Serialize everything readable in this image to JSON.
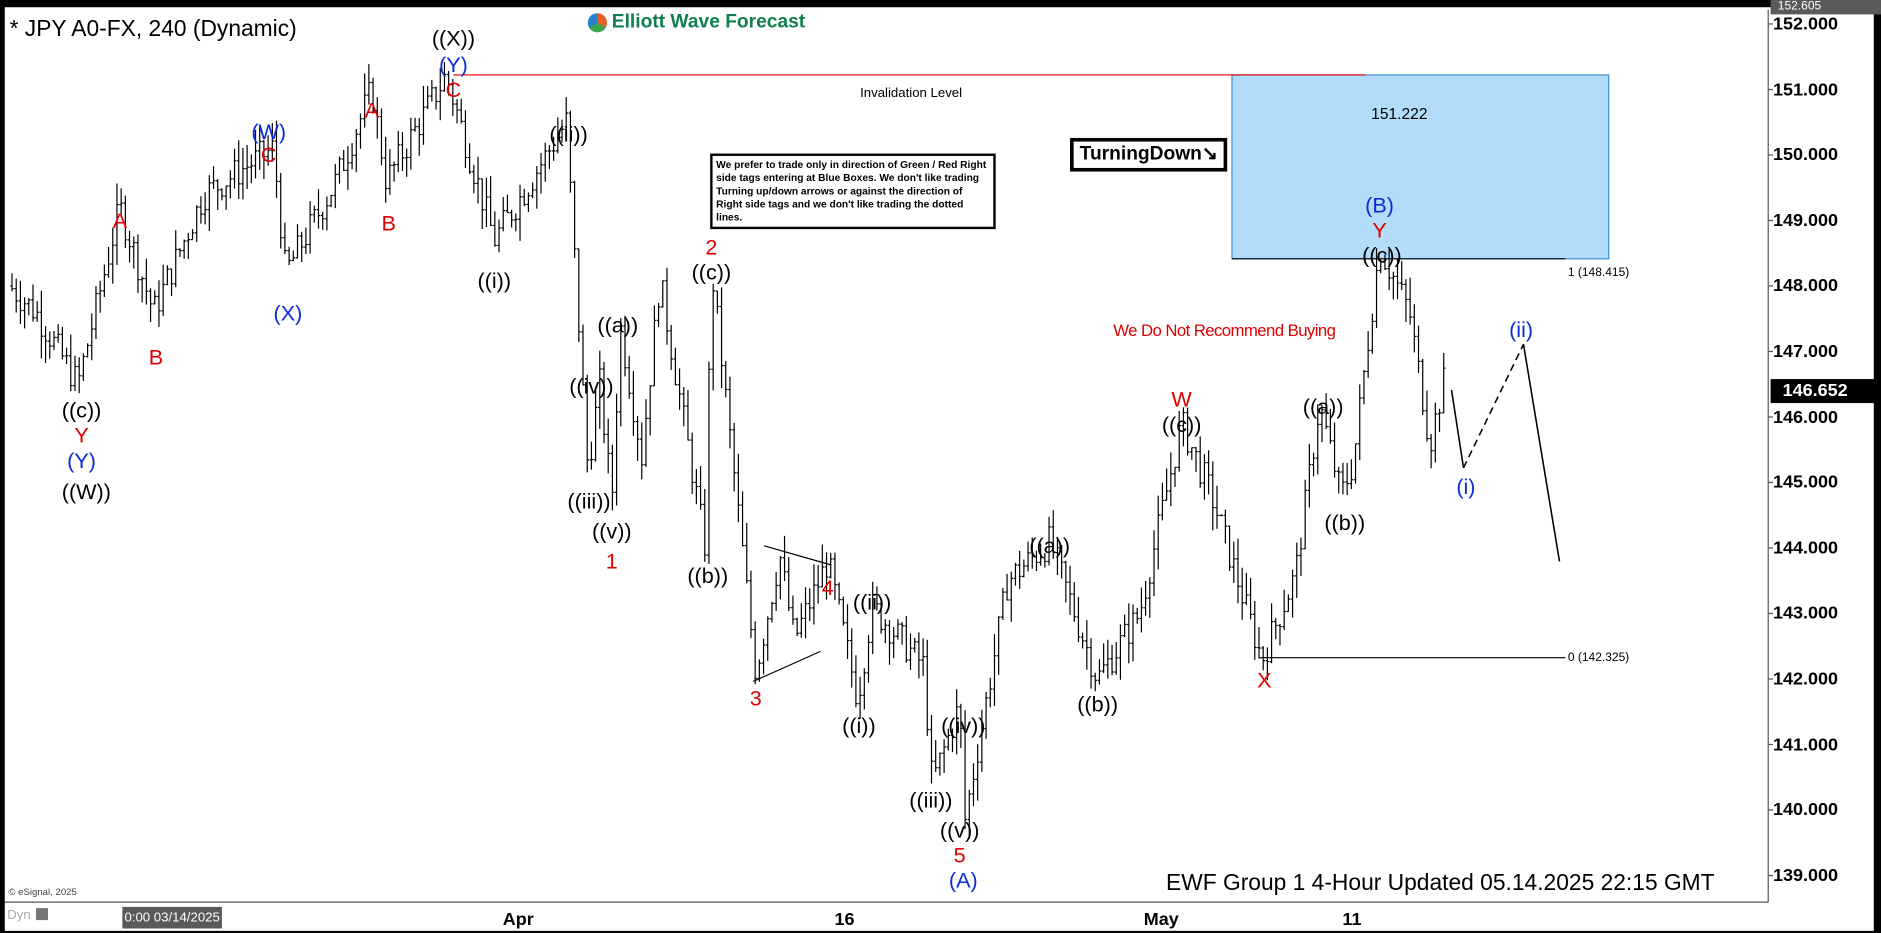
{
  "header": {
    "title": "* JPY A0-FX, 240 (Dynamic)",
    "logo_text": "Elliott Wave Forecast"
  },
  "notice": "We prefer to trade only in direction of Green / Red Right side tags entering at Blue Boxes. We don't like trading Turning up/down arrows or against the direction of Right side tags and we don't like trading the dotted lines.",
  "turning_down": "TurningDown",
  "invalidation_label": "Invalidation Level",
  "box_top_value": "151.222",
  "fib_top": "1 (148.415)",
  "fib_bottom": "0 (142.325)",
  "warning": "We Do Not Recommend Buying",
  "footer": "EWF Group 1 4-Hour Updated 05.14.2025 22:15 GMT",
  "copyright": "© eSignal, 2025",
  "dyn": "Dyn",
  "cursor_time": "0:00 03/14/2025",
  "colors": {
    "red": "#e00000",
    "blue": "#0a2bd6",
    "black": "#000000",
    "box": "#b3dcfb",
    "logo": "#0f7f4f"
  },
  "chart_data": {
    "type": "ohlc",
    "symbol": "JPY A0-FX",
    "interval": "240",
    "ylim": [
      139,
      152.605
    ],
    "y_ticks": [
      "152.000",
      "151.000",
      "150.000",
      "149.000",
      "148.000",
      "147.000",
      "146.000",
      "145.000",
      "144.000",
      "143.000",
      "142.000",
      "141.000",
      "140.000",
      "139.000"
    ],
    "x_ticks": [
      "Apr",
      "16",
      "May",
      "11"
    ],
    "high_tag": "152.605",
    "last_price": "146.652",
    "blue_box": [
      148.415,
      151.222
    ],
    "invalidation_level": 151.222,
    "wave_labels": [
      "((c))",
      "Y",
      "(Y)",
      "((W))",
      "A",
      "B",
      "(W)",
      "C",
      "(X)",
      "A",
      "B",
      "((X))",
      "(Y)",
      "C",
      "((ii))",
      "((i))",
      "((a))",
      "((iv))",
      "((iii))",
      "((v))",
      "1",
      "2",
      "((c))",
      "((b))",
      "3",
      "4",
      "((ii))",
      "((i))",
      "((iv))",
      "((iii))",
      "((v))",
      "5",
      "(A)",
      "((a))",
      "((b))",
      "W",
      "((c))",
      "X",
      "((a))",
      "((b))",
      "(B)",
      "Y",
      "((c))",
      "(ii)",
      "(i)"
    ]
  }
}
